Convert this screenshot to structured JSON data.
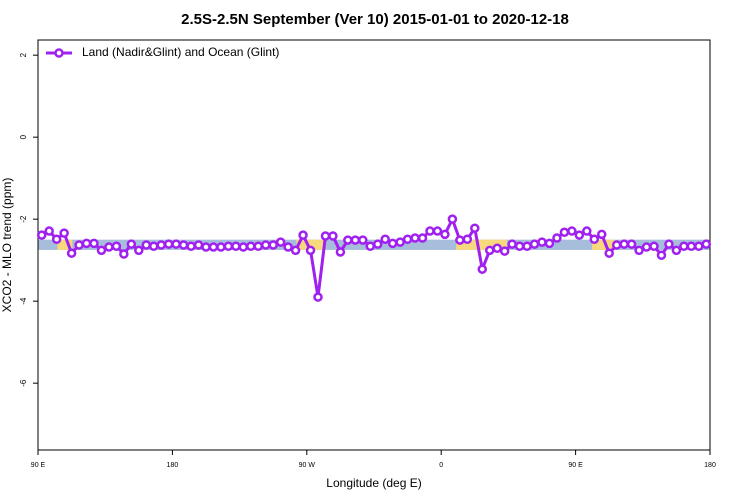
{
  "chart_data": {
    "type": "line",
    "title": "2.5S-2.5N September (Ver 10)   2015-01-01 to 2020-12-18",
    "xlabel": "Longitude (deg E)",
    "ylabel": "XCO2 - MLO trend (ppm)",
    "xlim": [
      90,
      540
    ],
    "xticks": [
      {
        "value": 90,
        "label": "90 E"
      },
      {
        "value": 180,
        "label": "180"
      },
      {
        "value": 270,
        "label": "90 W"
      },
      {
        "value": 360,
        "label": "0"
      },
      {
        "value": 450,
        "label": "90 E"
      },
      {
        "value": 540,
        "label": "180"
      }
    ],
    "ylim": [
      -7.63,
      2.37
    ],
    "yticks": [
      2,
      0,
      -2,
      -4,
      -6
    ],
    "legend": "top-left",
    "band": {
      "y": [
        -2.5,
        -2.75
      ],
      "color": "#a6bddb",
      "highlight_color": "#f7d87c",
      "highlight_x": [
        [
          103,
          113
        ],
        [
          263,
          281
        ],
        [
          370,
          404
        ],
        [
          461,
          476
        ]
      ]
    },
    "x": [
      92.5,
      97.5,
      102.5,
      107.5,
      112.5,
      117.5,
      122.5,
      127.5,
      132.5,
      137.5,
      142.5,
      147.5,
      152.5,
      157.5,
      162.5,
      167.5,
      172.5,
      177.5,
      182.5,
      187.5,
      192.5,
      197.5,
      202.5,
      207.5,
      212.5,
      217.5,
      222.5,
      227.5,
      232.5,
      237.5,
      242.5,
      247.5,
      252.5,
      257.5,
      262.5,
      267.5,
      272.5,
      277.5,
      282.5,
      287.5,
      292.5,
      297.5,
      302.5,
      307.5,
      312.5,
      317.5,
      322.5,
      327.5,
      332.5,
      337.5,
      342.5,
      347.5,
      352.5,
      357.5,
      362.5,
      367.5,
      372.5,
      377.5,
      382.5,
      387.5,
      392.5,
      397.5,
      402.5,
      407.5,
      412.5,
      417.5,
      422.5,
      427.5,
      432.5,
      437.5,
      442.5,
      447.5,
      452.5,
      457.5,
      462.5,
      467.5,
      472.5,
      477.5,
      482.5,
      487.5,
      492.5,
      497.5,
      502.5,
      507.5,
      512.5,
      517.5,
      522.5,
      527.5,
      532.5,
      537.5
    ],
    "series": [
      {
        "name": "Land (Nadir&Glint) and Ocean (Glint)",
        "color": "#a020f0",
        "values": [
          -2.39,
          -2.29,
          -2.49,
          -2.34,
          -2.83,
          -2.63,
          -2.59,
          -2.59,
          -2.76,
          -2.68,
          -2.66,
          -2.85,
          -2.61,
          -2.76,
          -2.63,
          -2.66,
          -2.63,
          -2.61,
          -2.61,
          -2.63,
          -2.66,
          -2.63,
          -2.68,
          -2.68,
          -2.68,
          -2.66,
          -2.66,
          -2.68,
          -2.66,
          -2.66,
          -2.63,
          -2.63,
          -2.56,
          -2.68,
          -2.76,
          -2.39,
          -2.76,
          -3.9,
          -2.41,
          -2.41,
          -2.8,
          -2.51,
          -2.51,
          -2.51,
          -2.66,
          -2.61,
          -2.49,
          -2.59,
          -2.56,
          -2.49,
          -2.46,
          -2.46,
          -2.29,
          -2.29,
          -2.37,
          -2.0,
          -2.51,
          -2.49,
          -2.22,
          -3.22,
          -2.76,
          -2.71,
          -2.78,
          -2.61,
          -2.66,
          -2.66,
          -2.61,
          -2.56,
          -2.59,
          -2.46,
          -2.32,
          -2.29,
          -2.39,
          -2.29,
          -2.49,
          -2.37,
          -2.83,
          -2.63,
          -2.61,
          -2.61,
          -2.76,
          -2.68,
          -2.66,
          -2.88,
          -2.61,
          -2.76,
          -2.66,
          -2.66,
          -2.66,
          -2.61
        ]
      }
    ]
  }
}
